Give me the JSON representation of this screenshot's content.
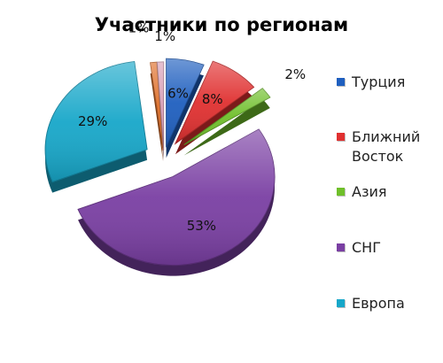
{
  "chart_data": {
    "type": "pie",
    "title": "Участники по регионам",
    "categories": [
      "Турция",
      "Ближний Восток",
      "Азия",
      "СНГ",
      "Европа",
      "",
      ""
    ],
    "values": [
      6,
      8,
      2,
      53,
      29,
      1,
      1
    ],
    "data_labels": [
      "6%",
      "8%",
      "2%",
      "53%",
      "29%",
      "1%",
      "1%"
    ],
    "colors": [
      "#1f5fbf",
      "#e03030",
      "#6fbf2a",
      "#7a3fa3",
      "#17a7c9",
      "#e0702a",
      "#d8a0b8"
    ],
    "legend": [
      {
        "label": "Турция",
        "color": "#1f5fbf"
      },
      {
        "label": "Ближний Восток",
        "color": "#e03030"
      },
      {
        "label": "Азия",
        "color": "#6fbf2a"
      },
      {
        "label": "СНГ",
        "color": "#7a3fa3"
      },
      {
        "label": "Европа",
        "color": "#17a7c9"
      }
    ],
    "legend_position": "right",
    "exploded": true,
    "style": "3d"
  }
}
